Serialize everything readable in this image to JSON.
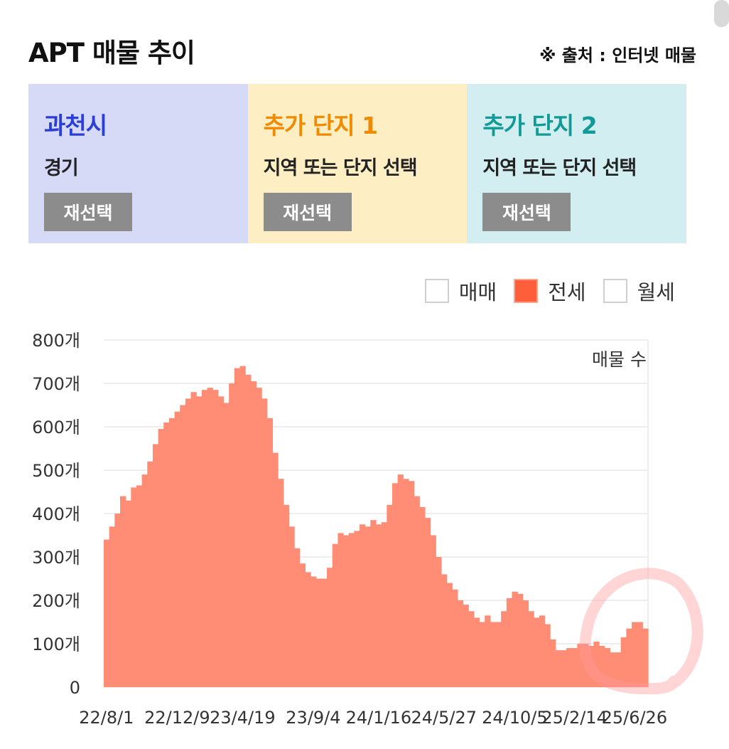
{
  "header": {
    "title": "APT 매물 추이",
    "source": "※ 출처 : 인터넷 매물"
  },
  "panels": [
    {
      "title": "과천시",
      "subtitle": "경기",
      "button": "재선택",
      "bg": "#d6daf7",
      "title_color": "#2b3fd6"
    },
    {
      "title": "추가 단지 1",
      "subtitle": "지역 또는 단지 선택",
      "button": "재선택",
      "bg": "#feeec4",
      "title_color": "#f08a00"
    },
    {
      "title": "추가 단지 2",
      "subtitle": "지역 또는 단지 선택",
      "button": "재선택",
      "bg": "#d2eef0",
      "title_color": "#129a96"
    }
  ],
  "legend": [
    {
      "label": "매매",
      "checked": false
    },
    {
      "label": "전세",
      "checked": true
    },
    {
      "label": "월세",
      "checked": false
    }
  ],
  "colors": {
    "area": "#ff8c74",
    "accent": "#ff5e3a",
    "annotation": "#ff9a9a"
  },
  "chart_data": {
    "type": "area",
    "series_label": "매물 수",
    "ylim": [
      0,
      800
    ],
    "y_ticks": [
      {
        "value": 0,
        "label": "0"
      },
      {
        "value": 100,
        "label": "100개"
      },
      {
        "value": 200,
        "label": "200개"
      },
      {
        "value": 300,
        "label": "300개"
      },
      {
        "value": 400,
        "label": "400개"
      },
      {
        "value": 500,
        "label": "500개"
      },
      {
        "value": 600,
        "label": "600개"
      },
      {
        "value": 700,
        "label": "700개"
      },
      {
        "value": 800,
        "label": "800개"
      }
    ],
    "x_ticks": [
      {
        "index": 0,
        "label": "22/8/1"
      },
      {
        "index": 13,
        "label": "22/12/9"
      },
      {
        "index": 25,
        "label": "23/4/19"
      },
      {
        "index": 38,
        "label": "23/9/4"
      },
      {
        "index": 50,
        "label": "24/1/16"
      },
      {
        "index": 62,
        "label": "24/5/27"
      },
      {
        "index": 75,
        "label": "24/10/5"
      },
      {
        "index": 86,
        "label": "25/2/14"
      },
      {
        "index": 97,
        "label": "25/6/26"
      }
    ],
    "values": [
      340,
      370,
      400,
      440,
      430,
      460,
      465,
      490,
      520,
      560,
      595,
      610,
      620,
      635,
      650,
      665,
      680,
      670,
      685,
      690,
      685,
      670,
      655,
      700,
      735,
      740,
      720,
      705,
      690,
      665,
      620,
      540,
      480,
      420,
      370,
      320,
      285,
      265,
      255,
      250,
      250,
      275,
      330,
      355,
      350,
      355,
      360,
      375,
      370,
      385,
      375,
      380,
      420,
      470,
      490,
      480,
      475,
      440,
      415,
      390,
      350,
      300,
      260,
      240,
      225,
      200,
      190,
      175,
      160,
      150,
      165,
      150,
      150,
      175,
      205,
      220,
      215,
      200,
      175,
      160,
      165,
      145,
      110,
      85,
      85,
      90,
      90,
      100,
      100,
      95,
      105,
      95,
      90,
      80,
      80,
      115,
      135,
      150,
      150,
      135
    ]
  }
}
